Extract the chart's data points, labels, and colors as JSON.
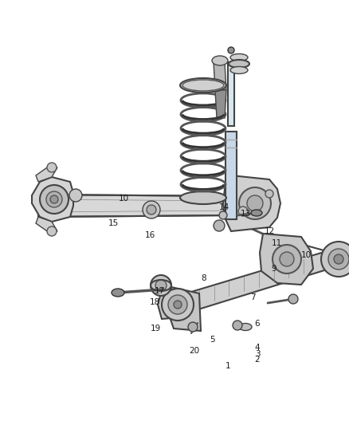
{
  "bg_color": "#ffffff",
  "fig_width": 4.38,
  "fig_height": 5.33,
  "dpi": 100,
  "line_color": "#2a2a2a",
  "text_color": "#1a1a1a",
  "font_size": 7.5,
  "label_positions": {
    "1": [
      0.66,
      0.862,
      "right"
    ],
    "2": [
      0.73,
      0.847,
      "left"
    ],
    "3": [
      0.73,
      0.833,
      "left"
    ],
    "4": [
      0.73,
      0.818,
      "left"
    ],
    "5": [
      0.615,
      0.8,
      "right"
    ],
    "6": [
      0.73,
      0.762,
      "left"
    ],
    "7": [
      0.718,
      0.7,
      "left"
    ],
    "8": [
      0.59,
      0.655,
      "right"
    ],
    "9": [
      0.778,
      0.633,
      "left"
    ],
    "10a": [
      0.862,
      0.6,
      "left"
    ],
    "10b": [
      0.37,
      0.467,
      "right"
    ],
    "11": [
      0.778,
      0.572,
      "left"
    ],
    "12": [
      0.758,
      0.544,
      "left"
    ],
    "13": [
      0.688,
      0.503,
      "left"
    ],
    "14": [
      0.628,
      0.488,
      "left"
    ],
    "15": [
      0.34,
      0.526,
      "right"
    ],
    "16": [
      0.415,
      0.553,
      "left"
    ],
    "17": [
      0.442,
      0.684,
      "left"
    ],
    "18": [
      0.428,
      0.712,
      "left"
    ],
    "19": [
      0.432,
      0.773,
      "left"
    ],
    "20": [
      0.572,
      0.826,
      "right"
    ]
  }
}
